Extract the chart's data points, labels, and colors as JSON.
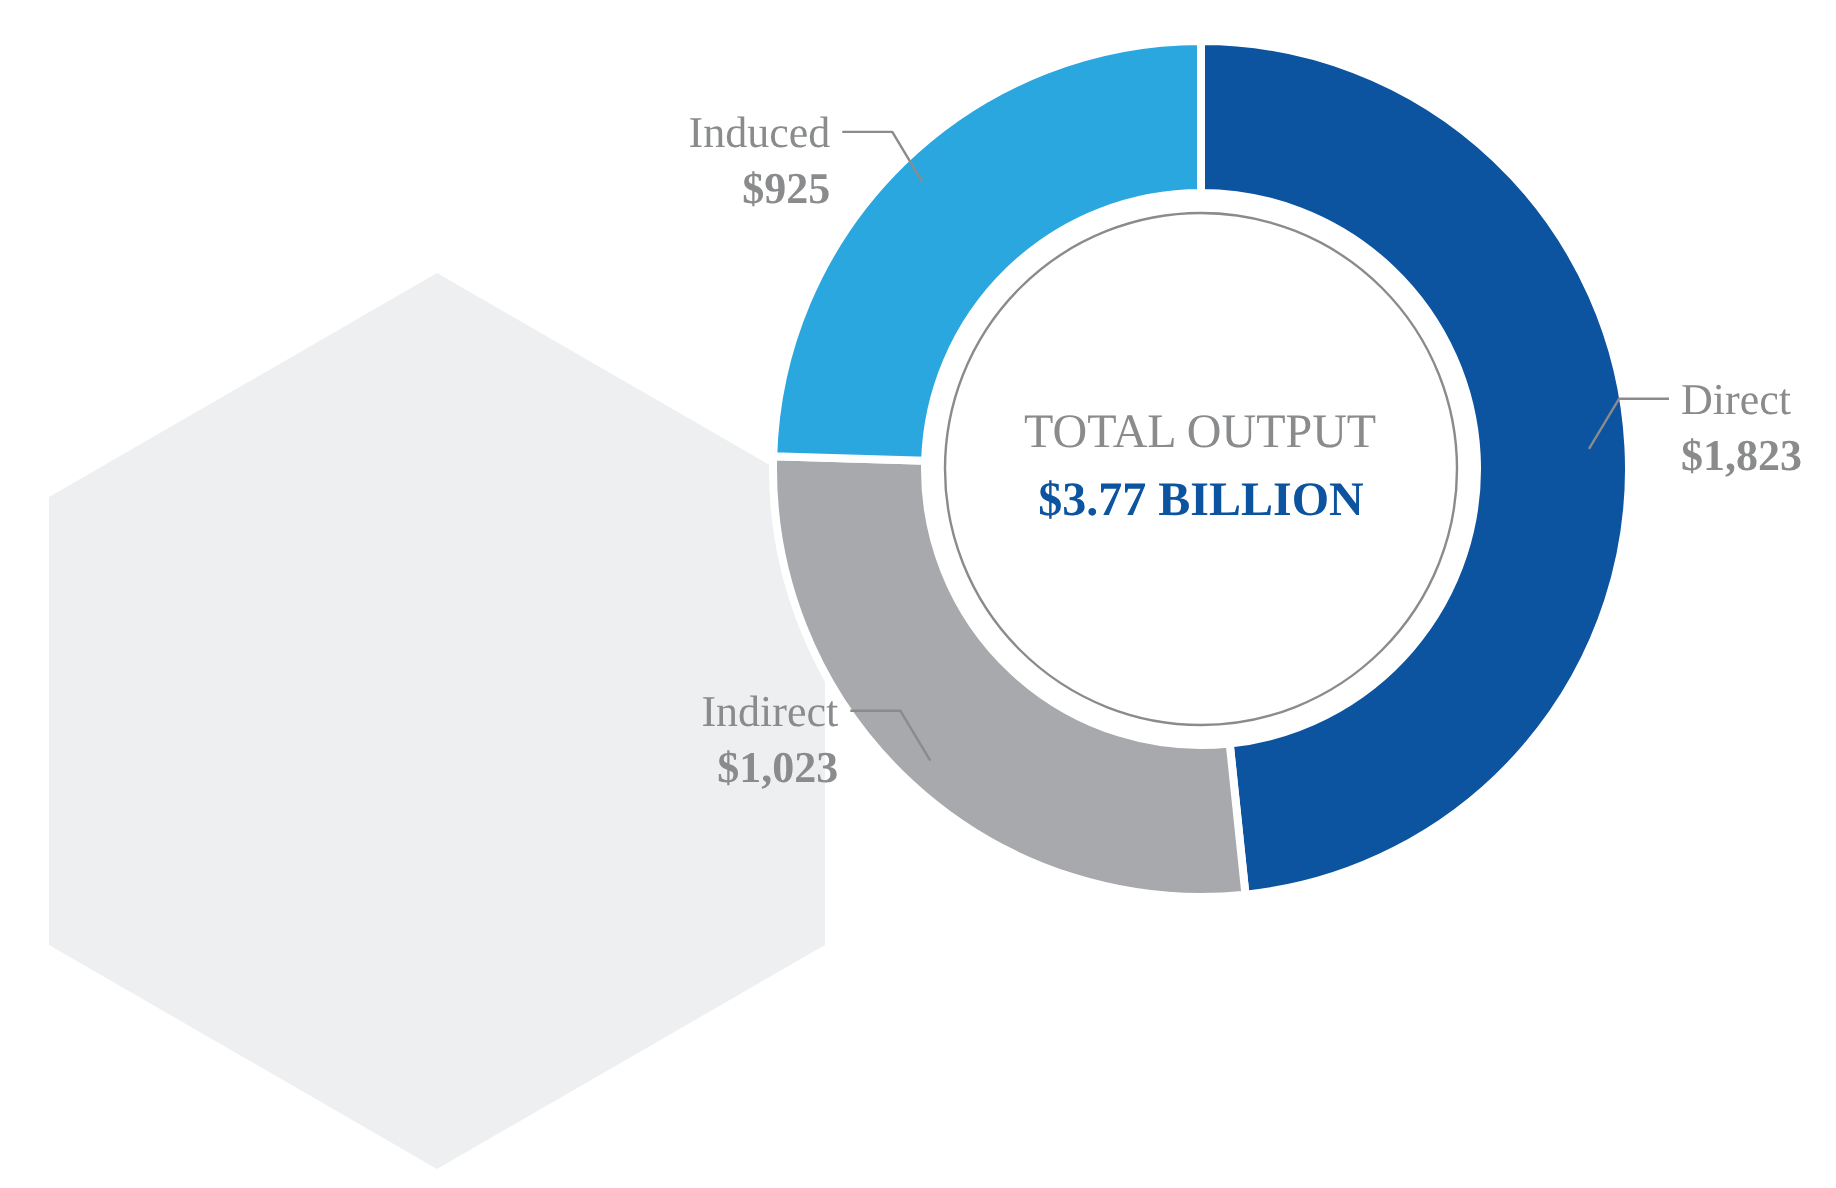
{
  "chart_data": {
    "type": "donut",
    "categories": [
      "Direct",
      "Indirect",
      "Induced"
    ],
    "values": [
      1823,
      1023,
      925
    ],
    "colors": [
      "#0c53a0",
      "#a8a9ac",
      "#29a7de"
    ],
    "value_labels": [
      "$1,823",
      "$1,023",
      "$925"
    ],
    "annotations": [
      "TOTAL OUTPUT",
      "$3.77 BILLION"
    ]
  }
}
